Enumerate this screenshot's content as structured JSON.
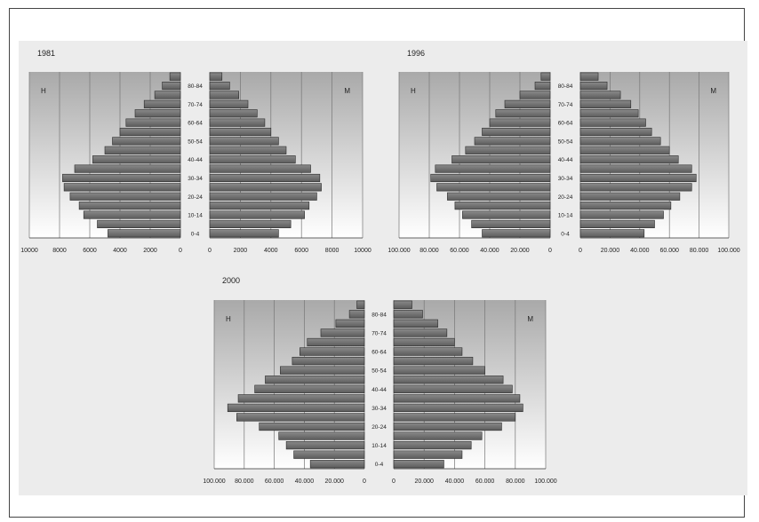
{
  "chart_data": [
    {
      "type": "bar",
      "subtype": "population-pyramid",
      "title": "1981",
      "left_label": "H",
      "right_label": "M",
      "age_labels": [
        "0-4",
        "",
        "10-14",
        "",
        "20-24",
        "",
        "30-34",
        "",
        "40-44",
        "",
        "50-54",
        "",
        "60-64",
        "",
        "70-74",
        "",
        "80-84",
        ""
      ],
      "x_ticks_left": [
        "10000",
        "8000",
        "6000",
        "4000",
        "2000",
        "0"
      ],
      "x_ticks_right": [
        "0",
        "2000",
        "4000",
        "6000",
        "8000",
        "10000"
      ],
      "xlim": [
        0,
        10000
      ],
      "male": [
        4800,
        5500,
        6400,
        6700,
        7300,
        7700,
        7800,
        7000,
        5800,
        5000,
        4500,
        4000,
        3600,
        3000,
        2400,
        1700,
        1200,
        700
      ],
      "female": [
        4500,
        5300,
        6200,
        6500,
        7000,
        7300,
        7200,
        6600,
        5600,
        5000,
        4500,
        4000,
        3600,
        3100,
        2500,
        1900,
        1300,
        800
      ]
    },
    {
      "type": "bar",
      "subtype": "population-pyramid",
      "title": "1996",
      "left_label": "H",
      "right_label": "M",
      "age_labels": [
        "0-4",
        "",
        "10-14",
        "",
        "20-24",
        "",
        "30-34",
        "",
        "40-44",
        "",
        "50-54",
        "",
        "60-64",
        "",
        "70-74",
        "",
        "80-84",
        ""
      ],
      "x_ticks_left": [
        "100.000",
        "80.000",
        "60.000",
        "40.000",
        "20.000",
        "0"
      ],
      "x_ticks_right": [
        "0",
        "20.000",
        "40.000",
        "60.000",
        "80.000",
        "100.000"
      ],
      "xlim": [
        0,
        100000
      ],
      "male": [
        45000,
        52000,
        58000,
        63000,
        68000,
        75000,
        79000,
        76000,
        65000,
        56000,
        50000,
        45000,
        40000,
        36000,
        30000,
        20000,
        10000,
        6000
      ],
      "female": [
        43000,
        50000,
        56000,
        61000,
        67000,
        75000,
        78000,
        75000,
        66000,
        60000,
        54000,
        48000,
        44000,
        39000,
        34000,
        27000,
        18000,
        12000
      ]
    },
    {
      "type": "bar",
      "subtype": "population-pyramid",
      "title": "2000",
      "left_label": "H",
      "right_label": "M",
      "age_labels": [
        "0-4",
        "",
        "10-14",
        "",
        "20-24",
        "",
        "30-34",
        "",
        "40-44",
        "",
        "50-54",
        "",
        "60-64",
        "",
        "70-74",
        "",
        "80-84",
        ""
      ],
      "x_ticks_left": [
        "100.000",
        "80.000",
        "60.000",
        "40.000",
        "20.000",
        "0"
      ],
      "x_ticks_right": [
        "0",
        "20.000",
        "40.000",
        "60.000",
        "80.000",
        "100.000"
      ],
      "xlim": [
        0,
        100000
      ],
      "male": [
        36000,
        47000,
        52000,
        57000,
        70000,
        85000,
        91000,
        84000,
        73000,
        66000,
        56000,
        48000,
        43000,
        38000,
        29000,
        19000,
        10000,
        5000
      ],
      "female": [
        33000,
        45000,
        51000,
        58000,
        71000,
        80000,
        85000,
        83000,
        78000,
        72000,
        60000,
        52000,
        45000,
        40000,
        35000,
        29000,
        19000,
        12000
      ]
    }
  ]
}
